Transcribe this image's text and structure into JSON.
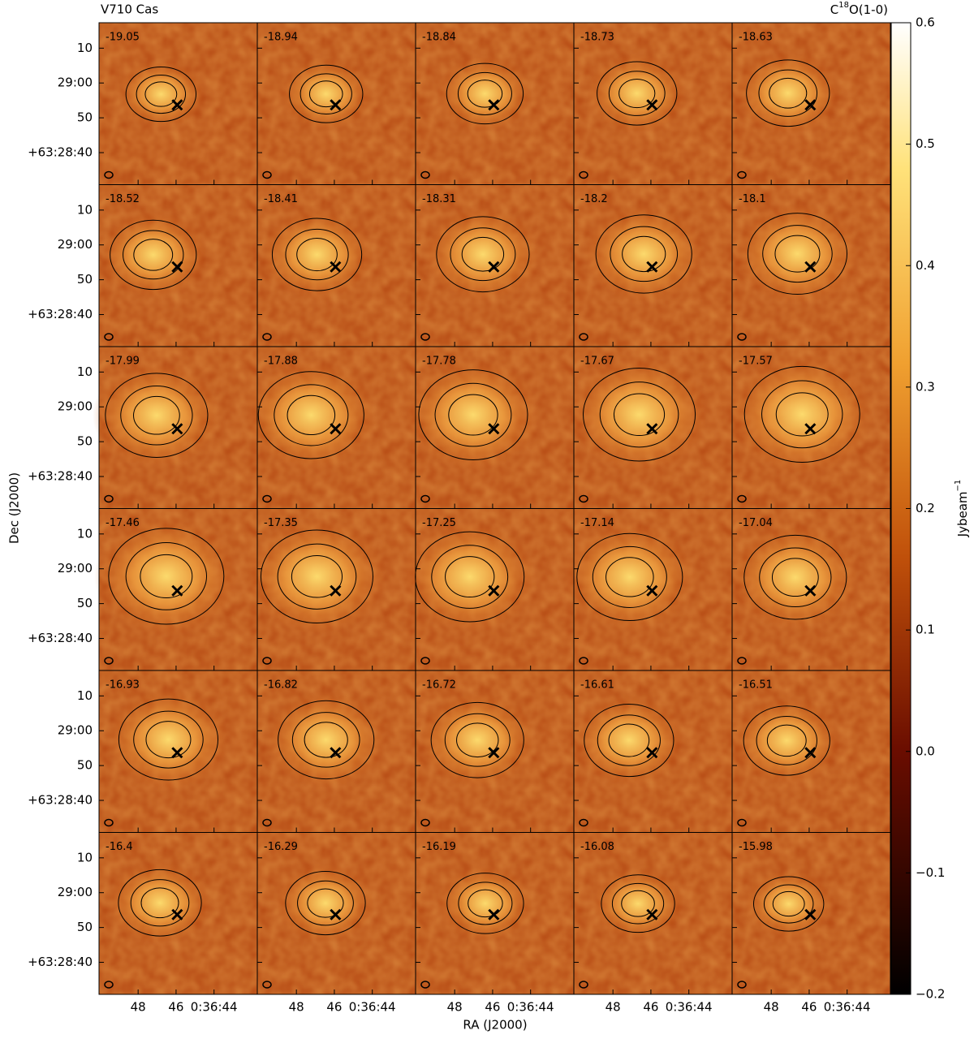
{
  "chart_data": {
    "type": "channel-map",
    "title": "V710 Cas",
    "line": {
      "base": "C",
      "sup": "18",
      "rest": "O(1-0)"
    },
    "xlabel": "RA (J2000)",
    "ylabel": "Dec (J2000)",
    "colorbar_label": {
      "base": "Jybeam",
      "sup": "−1"
    },
    "rows": 6,
    "cols": 5,
    "velocities": [
      -19.05,
      -18.94,
      -18.84,
      -18.73,
      -18.63,
      -18.52,
      -18.41,
      -18.31,
      -18.2,
      -18.1,
      -17.99,
      -17.88,
      -17.78,
      -17.67,
      -17.57,
      -17.46,
      -17.35,
      -17.25,
      -17.14,
      -17.04,
      -16.93,
      -16.82,
      -16.72,
      -16.61,
      -16.51,
      -16.4,
      -16.29,
      -16.19,
      -16.08,
      -15.98
    ],
    "xlim": [
      50.06,
      41.72
    ],
    "xticks": [
      48,
      46,
      {
        "value": 44,
        "label": "0:36:44"
      }
    ],
    "ylim": [
      30.8,
      77.3
    ],
    "yticks": [
      {
        "value": 70,
        "label": "10"
      },
      {
        "value": 60,
        "label": "29:00"
      },
      50,
      {
        "value": 40,
        "label": "+63:28:40"
      }
    ],
    "source": {
      "x": 45.94,
      "y": 53.7
    },
    "clim": [
      -0.2,
      0.6
    ],
    "cticks": [
      {
        "value": -0.2,
        "label": "−0.2"
      },
      {
        "value": -0.1,
        "label": "−0.1"
      },
      {
        "value": 0,
        "label": "0.0"
      },
      0.1,
      0.2,
      0.3,
      0.4,
      0.5,
      0.6
    ]
  }
}
